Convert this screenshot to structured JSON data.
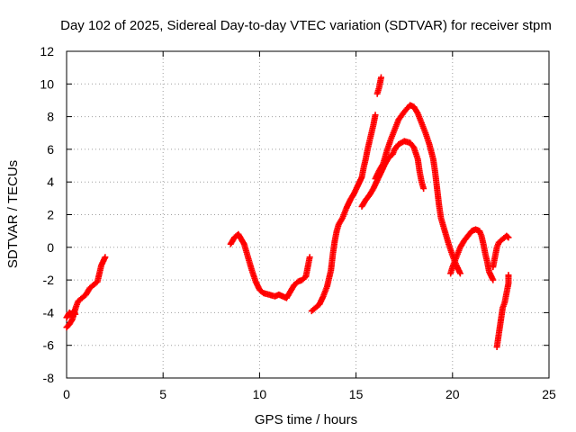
{
  "chart_data": {
    "type": "scatter",
    "title": "Day 102 of 2025, Sidereal Day-to-day VTEC variation (SDTVAR) for receiver stpm",
    "xlabel": "GPS time / hours",
    "ylabel": "SDTVAR / TECUs",
    "xlim": [
      0,
      25
    ],
    "ylim": [
      -8,
      12
    ],
    "x_ticks": [
      "0",
      "5",
      "10",
      "15",
      "20",
      "25"
    ],
    "y_ticks": [
      "-8",
      "-6",
      "-4",
      "-2",
      "0",
      "2",
      "4",
      "6",
      "8",
      "10",
      "12"
    ],
    "x_tick_values": [
      0,
      5,
      10,
      15,
      20,
      25
    ],
    "y_tick_values": [
      -8,
      -6,
      -4,
      -2,
      0,
      2,
      4,
      6,
      8,
      10,
      12
    ],
    "grid": true,
    "marker": "+",
    "series": [
      {
        "name": "SDTVAR",
        "color": "#ff0000",
        "segments": [
          [
            [
              0.0,
              -4.9
            ],
            [
              0.15,
              -4.7
            ],
            [
              0.3,
              -4.4
            ],
            [
              0.4,
              -4.0
            ],
            [
              0.5,
              -3.6
            ],
            [
              0.6,
              -3.3
            ],
            [
              0.8,
              -3.1
            ],
            [
              1.0,
              -2.9
            ],
            [
              1.2,
              -2.5
            ],
            [
              1.4,
              -2.3
            ],
            [
              1.6,
              -2.1
            ],
            [
              1.7,
              -1.6
            ],
            [
              1.8,
              -1.1
            ],
            [
              2.0,
              -0.6
            ]
          ],
          [
            [
              0.0,
              -4.3
            ],
            [
              0.15,
              -4.0
            ],
            [
              0.25,
              -4.2
            ],
            [
              0.35,
              -3.9
            ],
            [
              0.45,
              -4.1
            ]
          ],
          [
            [
              8.5,
              0.2
            ],
            [
              8.7,
              0.6
            ],
            [
              8.9,
              0.8
            ],
            [
              9.0,
              0.6
            ],
            [
              9.2,
              0.2
            ],
            [
              9.4,
              -0.6
            ],
            [
              9.6,
              -1.4
            ],
            [
              9.8,
              -2.1
            ],
            [
              10.0,
              -2.6
            ],
            [
              10.2,
              -2.8
            ],
            [
              10.5,
              -2.9
            ],
            [
              10.8,
              -3.0
            ],
            [
              11.0,
              -2.9
            ],
            [
              11.2,
              -3.0
            ],
            [
              11.4,
              -3.1
            ],
            [
              11.6,
              -2.7
            ],
            [
              11.8,
              -2.3
            ],
            [
              12.0,
              -2.1
            ],
            [
              12.2,
              -2.0
            ],
            [
              12.4,
              -1.8
            ],
            [
              12.5,
              -1.2
            ],
            [
              12.6,
              -0.6
            ]
          ],
          [
            [
              12.7,
              -3.9
            ],
            [
              12.9,
              -3.7
            ],
            [
              13.1,
              -3.5
            ],
            [
              13.3,
              -3.0
            ],
            [
              13.5,
              -2.4
            ],
            [
              13.7,
              -1.4
            ],
            [
              13.8,
              -0.4
            ],
            [
              13.9,
              0.4
            ],
            [
              14.0,
              1.0
            ],
            [
              14.1,
              1.4
            ],
            [
              14.3,
              1.8
            ],
            [
              14.5,
              2.4
            ],
            [
              14.7,
              2.9
            ],
            [
              14.9,
              3.3
            ],
            [
              15.1,
              3.8
            ],
            [
              15.3,
              4.3
            ],
            [
              15.4,
              4.9
            ],
            [
              15.5,
              5.4
            ],
            [
              15.6,
              6.0
            ],
            [
              15.7,
              6.5
            ],
            [
              15.8,
              7.0
            ],
            [
              15.9,
              7.5
            ],
            [
              16.0,
              8.1
            ]
          ],
          [
            [
              16.1,
              9.4
            ],
            [
              16.2,
              9.8
            ],
            [
              16.3,
              10.4
            ]
          ],
          [
            [
              15.3,
              2.5
            ],
            [
              15.5,
              2.9
            ],
            [
              15.7,
              3.2
            ],
            [
              15.9,
              3.6
            ],
            [
              16.1,
              4.1
            ],
            [
              16.3,
              4.6
            ],
            [
              16.5,
              5.1
            ],
            [
              16.7,
              5.5
            ],
            [
              16.9,
              5.7
            ],
            [
              17.0,
              6.0
            ],
            [
              17.2,
              6.3
            ],
            [
              17.5,
              6.5
            ],
            [
              17.8,
              6.4
            ],
            [
              18.0,
              6.1
            ],
            [
              18.2,
              5.4
            ],
            [
              18.3,
              4.6
            ],
            [
              18.4,
              4.0
            ],
            [
              18.5,
              3.6
            ]
          ],
          [
            [
              16.0,
              4.2
            ],
            [
              16.2,
              4.7
            ],
            [
              16.4,
              5.1
            ],
            [
              16.6,
              5.9
            ],
            [
              16.8,
              6.6
            ],
            [
              17.0,
              7.2
            ],
            [
              17.2,
              7.8
            ],
            [
              17.5,
              8.3
            ],
            [
              17.8,
              8.7
            ],
            [
              18.0,
              8.6
            ],
            [
              18.2,
              8.2
            ],
            [
              18.4,
              7.6
            ],
            [
              18.6,
              7.0
            ],
            [
              18.8,
              6.3
            ],
            [
              19.0,
              5.4
            ],
            [
              19.1,
              4.6
            ],
            [
              19.2,
              3.6
            ],
            [
              19.3,
              2.6
            ],
            [
              19.4,
              1.8
            ],
            [
              19.6,
              1.0
            ],
            [
              19.8,
              0.2
            ],
            [
              20.0,
              -0.5
            ],
            [
              20.2,
              -1.1
            ],
            [
              20.4,
              -1.6
            ]
          ],
          [
            [
              19.9,
              -1.6
            ],
            [
              20.0,
              -1.2
            ],
            [
              20.2,
              -0.6
            ],
            [
              20.4,
              0.0
            ],
            [
              20.6,
              0.4
            ],
            [
              20.8,
              0.7
            ],
            [
              21.0,
              1.0
            ],
            [
              21.2,
              1.1
            ],
            [
              21.4,
              1.0
            ],
            [
              21.5,
              0.7
            ],
            [
              21.6,
              0.2
            ],
            [
              21.7,
              -0.4
            ],
            [
              21.8,
              -0.9
            ],
            [
              21.9,
              -1.5
            ],
            [
              22.1,
              -2.0
            ]
          ],
          [
            [
              22.1,
              -1.2
            ],
            [
              22.2,
              -0.6
            ],
            [
              22.3,
              0.0
            ],
            [
              22.4,
              0.3
            ],
            [
              22.6,
              0.5
            ],
            [
              22.8,
              0.7
            ],
            [
              22.9,
              0.6
            ]
          ],
          [
            [
              22.3,
              -6.1
            ],
            [
              22.4,
              -5.3
            ],
            [
              22.5,
              -4.5
            ],
            [
              22.6,
              -3.7
            ],
            [
              22.7,
              -3.4
            ],
            [
              22.8,
              -2.8
            ],
            [
              22.9,
              -2.2
            ],
            [
              22.9,
              -1.7
            ]
          ]
        ]
      }
    ]
  }
}
